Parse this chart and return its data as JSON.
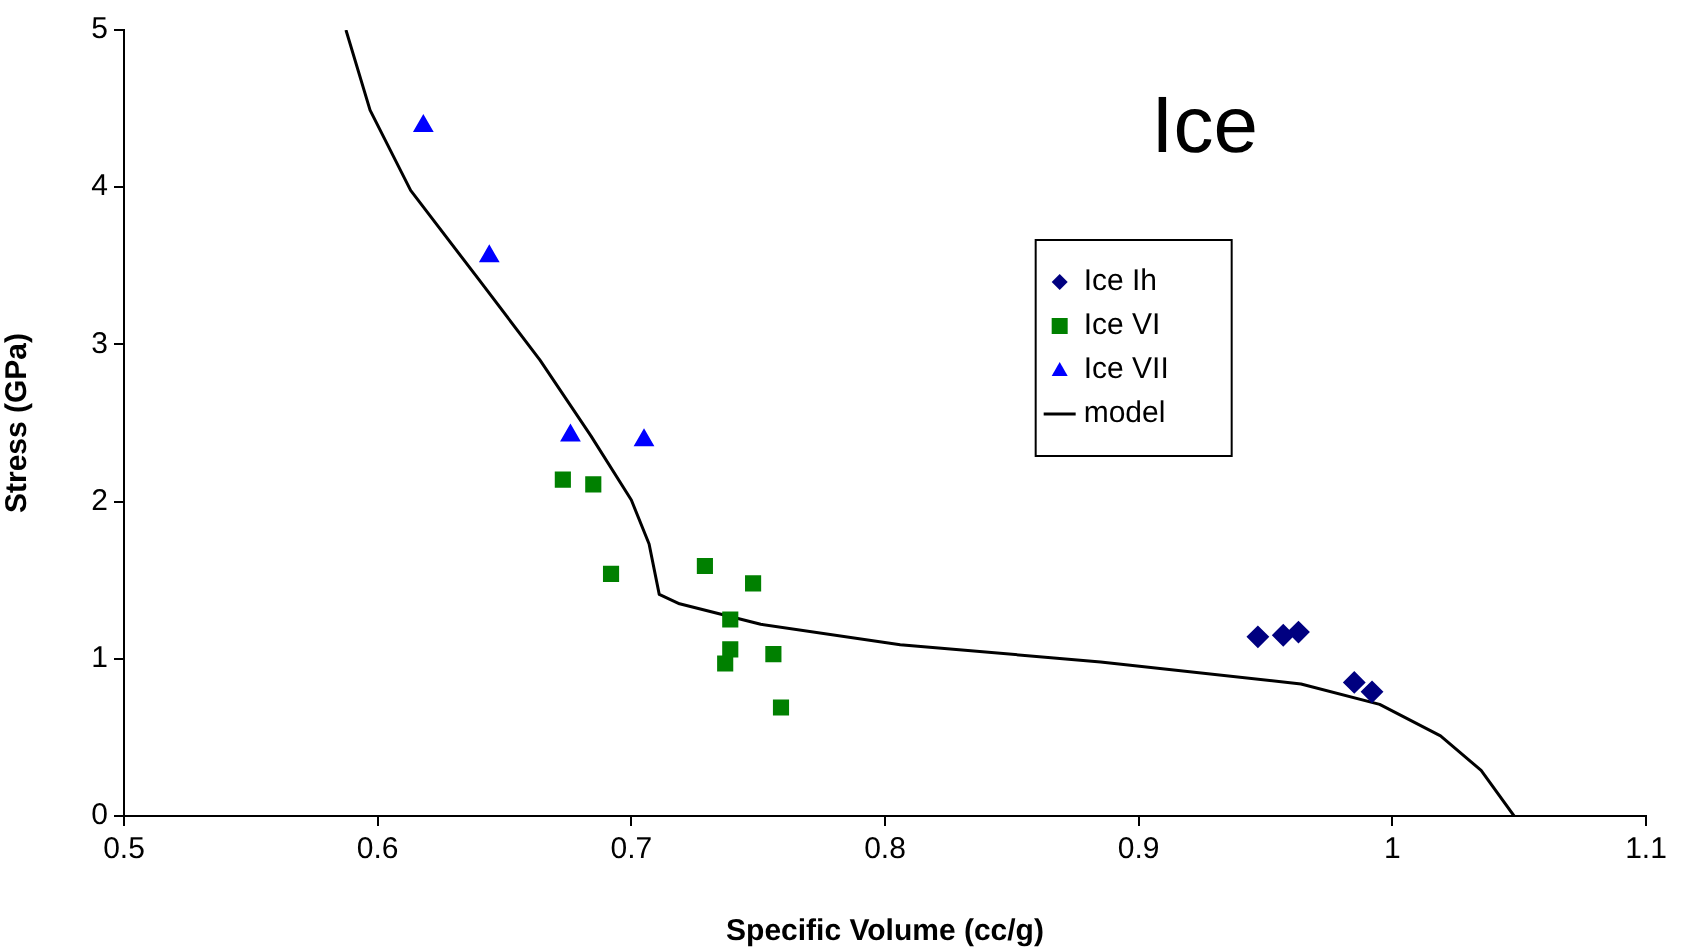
{
  "chart_data": {
    "type": "scatter",
    "title": "Ice",
    "xlabel": "Specific Volume (cc/g)",
    "ylabel": "Stress (GPa)",
    "xlim": [
      0.5,
      1.1
    ],
    "xticks": [
      0.5,
      0.6,
      0.7,
      0.8,
      0.9,
      1,
      1.1
    ],
    "ylim": [
      0,
      5
    ],
    "yticks": [
      0,
      1,
      2,
      3,
      4,
      5
    ],
    "grid": false,
    "legend": "right",
    "series": [
      {
        "name": "Ice Ih",
        "color": "#000080",
        "marker": "diamond",
        "x": [
          0.947,
          0.957,
          0.963,
          0.985,
          0.992
        ],
        "values": [
          1.14,
          1.15,
          1.17,
          0.85,
          0.79
        ]
      },
      {
        "name": "Ice VI",
        "color": "#008000",
        "marker": "square",
        "x": [
          0.673,
          0.685,
          0.692,
          0.729,
          0.748,
          0.739,
          0.739,
          0.737,
          0.756,
          0.759
        ],
        "values": [
          2.14,
          2.11,
          1.54,
          1.59,
          1.48,
          1.25,
          1.06,
          0.97,
          1.03,
          0.69
        ]
      },
      {
        "name": "Ice VII",
        "color": "#0000ff",
        "marker": "triangle",
        "x": [
          0.618,
          0.644,
          0.676,
          0.705
        ],
        "values": [
          4.39,
          3.56,
          2.42,
          2.39
        ]
      },
      {
        "name": "model",
        "type": "line",
        "color": "#000000",
        "marker": "none",
        "line_style": "solid",
        "x": [
          0.5875,
          0.597,
          0.613,
          0.64,
          0.664,
          0.684,
          0.7,
          0.707,
          0.711,
          0.719,
          0.751,
          0.806,
          0.885,
          0.964,
          0.995,
          1.019,
          1.035,
          1.048
        ],
        "values": [
          5,
          4.49,
          3.98,
          3.41,
          2.9,
          2.42,
          2.01,
          1.73,
          1.41,
          1.35,
          1.22,
          1.09,
          0.98,
          0.84,
          0.71,
          0.51,
          0.29,
          0
        ]
      }
    ]
  }
}
